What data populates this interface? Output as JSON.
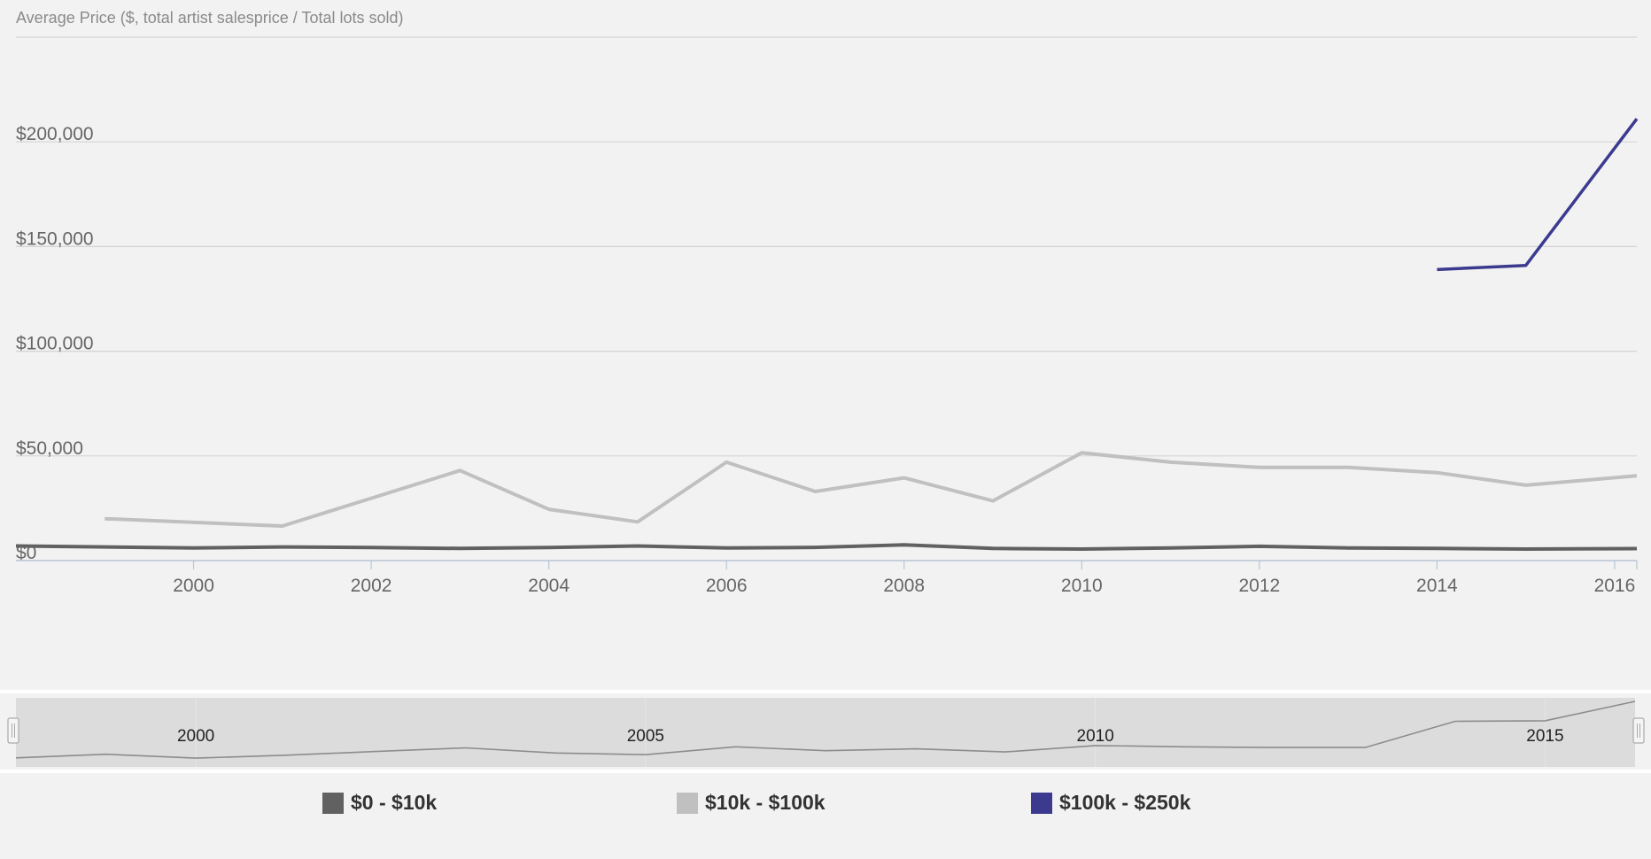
{
  "chart_data": {
    "type": "line",
    "title": "Average Price ($, total artist salesprice / Total lots sold)",
    "xlabel": "",
    "ylabel": "Average Price ($)",
    "xlim": [
      1998,
      2016.25
    ],
    "ylim": [
      0,
      250000
    ],
    "x_ticks": [
      2000,
      2002,
      2004,
      2006,
      2008,
      2010,
      2012,
      2014,
      2016
    ],
    "y_ticks": [
      0,
      50000,
      100000,
      150000,
      200000,
      250000
    ],
    "y_tick_labels": [
      "$0",
      "$50,000",
      "$100,000",
      "$150,000",
      "$200,000",
      ""
    ],
    "grid": true,
    "legend_position": "bottom",
    "series": [
      {
        "name": "$0 - $10k",
        "color": "#616161",
        "x": [
          1998,
          1999,
          2000,
          2001,
          2002,
          2003,
          2004,
          2005,
          2006,
          2007,
          2008,
          2009,
          2010,
          2011,
          2012,
          2013,
          2014,
          2015,
          2016.25
        ],
        "y": [
          7000,
          6500,
          6000,
          6500,
          6200,
          5800,
          6200,
          7000,
          6000,
          6300,
          7500,
          5800,
          5500,
          6000,
          6800,
          6000,
          5800,
          5500,
          5700
        ]
      },
      {
        "name": "$10k - $100k",
        "color": "#c0c0c0",
        "x": [
          1999,
          2001,
          2003,
          2004,
          2005,
          2006,
          2007,
          2008,
          2009,
          2010,
          2011,
          2012,
          2013,
          2014,
          2015,
          2016.25
        ],
        "y": [
          20000,
          16500,
          43000,
          24500,
          18500,
          47000,
          33000,
          39500,
          28500,
          51500,
          47000,
          44500,
          44500,
          42000,
          36000,
          40500
        ]
      },
      {
        "name": "$100k - $250k",
        "color": "#3b3a8f",
        "x": [
          2014,
          2015,
          2016.25
        ],
        "y": [
          139000,
          141000,
          211000
        ]
      }
    ]
  },
  "navigator": {
    "labels": [
      "2000",
      "2005",
      "2010",
      "2015"
    ],
    "label_years": [
      2000,
      2005,
      2010,
      2015
    ],
    "xlim": [
      1998,
      2016
    ],
    "series": {
      "x": [
        1998,
        1999,
        2000,
        2001,
        2002,
        2003,
        2004,
        2005,
        2006,
        2007,
        2008,
        2009,
        2010,
        2011,
        2012,
        2013,
        2014,
        2015,
        2016
      ],
      "y": [
        7000,
        20000,
        6000,
        16500,
        30000,
        43000,
        24500,
        18500,
        47000,
        33000,
        39500,
        28500,
        51500,
        47000,
        44500,
        44500,
        139000,
        141000,
        211000
      ]
    },
    "ymax": 211000
  },
  "legend": {
    "items": [
      {
        "label": "$0 - $10k",
        "color": "#616161"
      },
      {
        "label": "$10k - $100k",
        "color": "#c0c0c0"
      },
      {
        "label": "$100k - $250k",
        "color": "#3b3a8f"
      }
    ]
  }
}
